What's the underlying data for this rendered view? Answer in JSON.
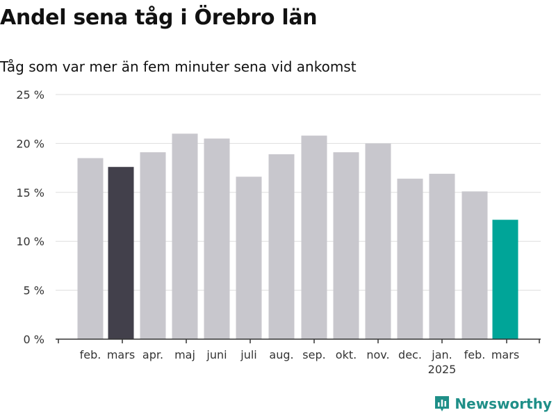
{
  "chart_data": {
    "type": "bar",
    "title": "Andel sena tåg i Örebro län",
    "subtitle": "Tåg som var mer än fem minuter sena vid ankomst",
    "categories": [
      "feb.",
      "mars",
      "apr.",
      "maj",
      "juni",
      "juli",
      "aug.",
      "sep.",
      "okt.",
      "nov.",
      "dec.",
      "jan.",
      "feb.",
      "mars"
    ],
    "year_label": "2025",
    "values": [
      18.5,
      17.6,
      19.1,
      21.0,
      20.5,
      16.6,
      18.9,
      20.8,
      19.1,
      20.0,
      16.4,
      16.9,
      15.1,
      12.2
    ],
    "colors": [
      "#c8c7cd",
      "#42404b",
      "#c8c7cd",
      "#c8c7cd",
      "#c8c7cd",
      "#c8c7cd",
      "#c8c7cd",
      "#c8c7cd",
      "#c8c7cd",
      "#c8c7cd",
      "#c8c7cd",
      "#c8c7cd",
      "#c8c7cd",
      "#00a598"
    ],
    "ylim": [
      0,
      25
    ],
    "yticks": [
      0,
      5,
      10,
      15,
      20,
      25
    ],
    "ytick_labels": [
      "0 %",
      "5 %",
      "10 %",
      "15 %",
      "20 %",
      "25 %"
    ],
    "grid": true,
    "xlabel": "",
    "ylabel": ""
  },
  "brand": {
    "name": "Newsworthy",
    "color": "#1f8f88",
    "icon": "bar-chart-icon"
  }
}
